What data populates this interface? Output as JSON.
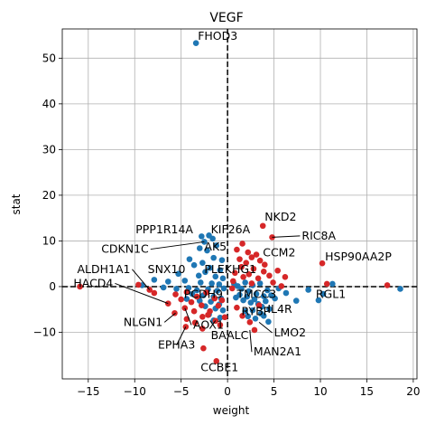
{
  "chart_data": {
    "type": "scatter",
    "title": "VEGF",
    "xlabel": "weight",
    "ylabel": "stat",
    "xlim": [
      -17.8,
      20.4
    ],
    "ylim": [
      -20.2,
      56.4
    ],
    "xticks": [
      -15,
      -10,
      -5,
      0,
      5,
      10,
      15,
      20
    ],
    "yticks": [
      -10,
      0,
      10,
      20,
      30,
      40,
      50
    ],
    "grid": true,
    "reference_lines": {
      "x": 0,
      "y": 0,
      "style": "dashed"
    },
    "colors": {
      "positive": "#d62728",
      "negative": "#1f77b4",
      "grid": "#b0b0b0"
    },
    "series": [
      {
        "color": "#1f77b4",
        "points": [
          [
            -3.4,
            53.3
          ],
          [
            -2.8,
            11.0
          ],
          [
            -2.0,
            11.2
          ],
          [
            -1.6,
            10.5
          ],
          [
            -2.5,
            9.8
          ],
          [
            -1.2,
            9.0
          ],
          [
            -3.0,
            8.4
          ],
          [
            -2.2,
            7.9
          ],
          [
            -4.1,
            6.0
          ],
          [
            -1.5,
            6.3
          ],
          [
            -0.6,
            5.8
          ],
          [
            -2.7,
            5.2
          ],
          [
            -3.6,
            4.7
          ],
          [
            -1.9,
            4.1
          ],
          [
            -0.8,
            3.6
          ],
          [
            -2.4,
            3.2
          ],
          [
            -5.3,
            2.8
          ],
          [
            -3.1,
            2.4
          ],
          [
            -1.3,
            2.2
          ],
          [
            -0.5,
            1.8
          ],
          [
            -7.9,
            1.5
          ],
          [
            -6.4,
            1.1
          ],
          [
            -4.6,
            1.3
          ],
          [
            -2.9,
            0.9
          ],
          [
            -1.7,
            0.7
          ],
          [
            -0.9,
            0.5
          ],
          [
            -9.2,
            0.3
          ],
          [
            -6.9,
            -0.2
          ],
          [
            -5.5,
            -0.5
          ],
          [
            -4.2,
            -0.3
          ],
          [
            -3.3,
            -0.8
          ],
          [
            -2.1,
            -0.6
          ],
          [
            -1.1,
            -0.9
          ],
          [
            -0.4,
            -0.4
          ],
          [
            -3.8,
            -1.6
          ],
          [
            -2.6,
            -1.9
          ],
          [
            -1.5,
            -2.2
          ],
          [
            -0.7,
            -2.6
          ],
          [
            -4.4,
            -2.7
          ],
          [
            -3.0,
            -3.1
          ],
          [
            -1.8,
            -3.3
          ],
          [
            -0.9,
            -3.9
          ],
          [
            -2.4,
            -4.3
          ],
          [
            -1.3,
            -4.8
          ],
          [
            -0.5,
            -5.2
          ],
          [
            -2.0,
            -6.1
          ],
          [
            -0.8,
            -6.8
          ],
          [
            -1.5,
            -7.4
          ],
          [
            0.7,
            0.6
          ],
          [
            1.1,
            0.1
          ],
          [
            1.5,
            -0.5
          ],
          [
            1.9,
            0.9
          ],
          [
            2.3,
            -1.0
          ],
          [
            2.7,
            0.3
          ],
          [
            3.1,
            -1.6
          ],
          [
            3.5,
            0.7
          ],
          [
            3.9,
            -2.1
          ],
          [
            4.3,
            -0.8
          ],
          [
            4.7,
            -1.9
          ],
          [
            5.1,
            -2.6
          ],
          [
            5.5,
            -0.4
          ],
          [
            1.3,
            -1.8
          ],
          [
            0.9,
            -2.4
          ],
          [
            1.7,
            -3.0
          ],
          [
            2.1,
            -2.2
          ],
          [
            2.5,
            -3.5
          ],
          [
            2.9,
            -2.8
          ],
          [
            3.3,
            -3.8
          ],
          [
            3.7,
            -4.4
          ],
          [
            4.1,
            -3.2
          ],
          [
            4.5,
            -4.9
          ],
          [
            2.7,
            -5.2
          ],
          [
            3.6,
            -5.9
          ],
          [
            1.9,
            -5.4
          ],
          [
            2.2,
            -6.5
          ],
          [
            3.0,
            -7.0
          ],
          [
            3.9,
            -6.4
          ],
          [
            4.4,
            -7.7
          ],
          [
            6.3,
            -1.4
          ],
          [
            7.4,
            -3.1
          ],
          [
            8.7,
            -0.7
          ],
          [
            9.8,
            -3.0
          ],
          [
            10.3,
            -1.6
          ],
          [
            11.3,
            0.6
          ],
          [
            18.6,
            -0.5
          ]
        ]
      },
      {
        "color": "#d62728",
        "points": [
          [
            3.8,
            13.3
          ],
          [
            4.8,
            10.8
          ],
          [
            1.6,
            9.4
          ],
          [
            1.0,
            8.1
          ],
          [
            2.2,
            7.5
          ],
          [
            3.1,
            7.0
          ],
          [
            2.6,
            6.4
          ],
          [
            1.3,
            6.0
          ],
          [
            3.5,
            5.7
          ],
          [
            2.0,
            5.2
          ],
          [
            4.0,
            4.8
          ],
          [
            1.5,
            4.3
          ],
          [
            2.8,
            3.9
          ],
          [
            3.9,
            3.3
          ],
          [
            0.8,
            3.0
          ],
          [
            2.3,
            2.7
          ],
          [
            4.5,
            2.4
          ],
          [
            1.7,
            2.1
          ],
          [
            3.3,
            1.8
          ],
          [
            5.4,
            3.5
          ],
          [
            6.2,
            2.1
          ],
          [
            4.9,
            0.9
          ],
          [
            0.6,
            1.2
          ],
          [
            2.6,
            0.7
          ],
          [
            5.8,
            0.1
          ],
          [
            10.2,
            5.1
          ],
          [
            10.7,
            0.6
          ],
          [
            17.2,
            0.3
          ],
          [
            -15.9,
            0.0
          ],
          [
            -9.6,
            0.4
          ],
          [
            -8.4,
            -0.7
          ],
          [
            -7.9,
            -1.4
          ],
          [
            -6.4,
            -3.7
          ],
          [
            -5.6,
            -1.7
          ],
          [
            -5.0,
            -2.8
          ],
          [
            -4.4,
            -1.2
          ],
          [
            -3.9,
            -3.4
          ],
          [
            -3.3,
            -2.2
          ],
          [
            -2.8,
            -4.1
          ],
          [
            -2.3,
            -1.3
          ],
          [
            -1.9,
            -5.4
          ],
          [
            -1.4,
            -2.6
          ],
          [
            -1.0,
            -4.2
          ],
          [
            -0.6,
            -3.0
          ],
          [
            -4.6,
            -4.7
          ],
          [
            -3.6,
            -5.4
          ],
          [
            -2.7,
            -6.6
          ],
          [
            -2.1,
            -6.2
          ],
          [
            -1.3,
            -7.5
          ],
          [
            -5.7,
            -5.8
          ],
          [
            -4.4,
            -7.1
          ],
          [
            -3.5,
            -7.9
          ],
          [
            -2.7,
            -9.2
          ],
          [
            -4.5,
            -8.8
          ],
          [
            -2.6,
            -13.5
          ],
          [
            -1.2,
            -16.3
          ],
          [
            -0.8,
            -8.4
          ],
          [
            -0.3,
            -6.7
          ],
          [
            0.5,
            -0.4
          ],
          [
            1.0,
            -4.6
          ],
          [
            1.6,
            -6.4
          ],
          [
            2.4,
            -7.8
          ],
          [
            2.9,
            -9.5
          ],
          [
            3.4,
            -4.1
          ]
        ]
      }
    ],
    "annotations": [
      {
        "text": "FHOD3",
        "x": -3.4,
        "y": 53.3,
        "tx": -3.2,
        "ty": 54.0,
        "leader": false
      },
      {
        "text": "NKD2",
        "x": 3.8,
        "y": 13.3,
        "tx": 4.0,
        "ty": 14.4,
        "leader": false
      },
      {
        "text": "PPP1R14A",
        "x": -2.8,
        "y": 11.0,
        "tx": -9.9,
        "ty": 11.7,
        "leader": false
      },
      {
        "text": "KIF26A",
        "x": -2.0,
        "y": 11.2,
        "tx": -1.8,
        "ty": 11.7,
        "leader": false
      },
      {
        "text": "RIC8A",
        "x": 4.8,
        "y": 10.8,
        "tx": 8.0,
        "ty": 10.3,
        "leader": true
      },
      {
        "text": "CDKN1C",
        "x": -2.5,
        "y": 9.8,
        "tx": -13.6,
        "ty": 7.4,
        "leader": true
      },
      {
        "text": "AK5",
        "x": -2.5,
        "y": 9.8,
        "tx": -2.5,
        "ty": 7.9,
        "leader": false
      },
      {
        "text": "CCM2",
        "x": 3.8,
        "y": 7.0,
        "tx": 3.8,
        "ty": 6.6,
        "leader": false
      },
      {
        "text": "HSP90AA2P",
        "x": 10.2,
        "y": 5.1,
        "tx": 10.5,
        "ty": 5.7,
        "leader": false
      },
      {
        "text": "ALDH1A1",
        "x": -8.4,
        "y": -0.7,
        "tx": -16.2,
        "ty": 3.0,
        "leader": true
      },
      {
        "text": "SNX10",
        "x": -5.3,
        "y": 2.8,
        "tx": -8.6,
        "ty": 3.0,
        "leader": false
      },
      {
        "text": "PLEKHG1",
        "x": -1.9,
        "y": 4.1,
        "tx": -2.5,
        "ty": 3.0,
        "leader": false
      },
      {
        "text": "HACD4",
        "x": -6.4,
        "y": -3.7,
        "tx": -16.6,
        "ty": -0.1,
        "leader": true
      },
      {
        "text": "PCDH9",
        "x": -4.2,
        "y": -0.3,
        "tx": -4.7,
        "ty": -2.5,
        "leader": false
      },
      {
        "text": "TMCC3",
        "x": 1.5,
        "y": -0.5,
        "tx": 1.0,
        "ty": -2.5,
        "leader": false
      },
      {
        "text": "RGL1",
        "x": 10.3,
        "y": -1.6,
        "tx": 9.5,
        "ty": -2.5,
        "leader": false
      },
      {
        "text": "RYBP",
        "x": 1.5,
        "y": -3.0,
        "tx": 1.5,
        "ty": -6.2,
        "leader": false
      },
      {
        "text": "IL4R",
        "x": 3.9,
        "y": -2.1,
        "tx": 4.3,
        "ty": -5.8,
        "leader": false
      },
      {
        "text": "NLGN1",
        "x": -5.6,
        "y": -5.8,
        "tx": -11.2,
        "ty": -8.6,
        "leader": true
      },
      {
        "text": "AOX1",
        "x": -4.6,
        "y": -4.7,
        "tx": -3.7,
        "ty": -9.2,
        "leader": true
      },
      {
        "text": "BAALC",
        "x": -0.8,
        "y": -8.4,
        "tx": -1.8,
        "ty": -11.5,
        "leader": false
      },
      {
        "text": "LMO2",
        "x": 3.4,
        "y": -7.8,
        "tx": 5.0,
        "ty": -10.9,
        "leader": true
      },
      {
        "text": "EPHA3",
        "x": -4.5,
        "y": -8.8,
        "tx": -7.5,
        "ty": -13.6,
        "leader": true
      },
      {
        "text": "MAN2A1",
        "x": 2.4,
        "y": -9.5,
        "tx": 2.8,
        "ty": -15.1,
        "leader": true
      },
      {
        "text": "CCBE1",
        "x": -2.6,
        "y": -13.5,
        "tx": -2.9,
        "ty": -18.5,
        "leader": false
      }
    ]
  }
}
